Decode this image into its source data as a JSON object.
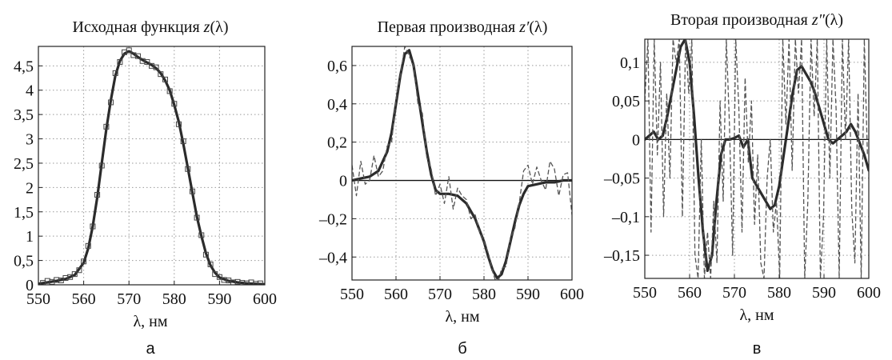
{
  "chart_data": [
    {
      "type": "line",
      "panel_label": "а",
      "title_text": "Исходная функция ",
      "title_var": "z",
      "title_tail": "(λ)",
      "xlabel": "λ, нм",
      "xlim": [
        550,
        600
      ],
      "ylim": [
        0,
        4.9
      ],
      "x_ticks": [
        550,
        560,
        570,
        580,
        590,
        600
      ],
      "x_tick_labels": [
        "550",
        "560",
        "570",
        "580",
        "590",
        "600"
      ],
      "y_ticks": [
        0,
        0.5,
        1,
        1.5,
        2,
        2.5,
        3,
        3.5,
        4,
        4.5
      ],
      "y_tick_labels": [
        "0",
        "0,5",
        "1",
        "1,5",
        "2",
        "2,5",
        "3",
        "3,5",
        "4",
        "4,5"
      ],
      "grid": true,
      "series": [
        {
          "style": "smooth",
          "x": [
            550,
            552,
            554,
            556,
            558,
            560,
            561,
            562,
            563,
            564,
            565,
            566,
            567,
            568,
            569,
            570,
            571,
            572,
            573,
            574,
            575,
            576,
            577,
            578,
            579,
            580,
            581,
            582,
            583,
            584,
            585,
            586,
            587,
            588,
            589,
            590,
            592,
            594,
            596,
            598,
            600
          ],
          "y": [
            0.02,
            0.05,
            0.08,
            0.12,
            0.2,
            0.45,
            0.75,
            1.2,
            1.8,
            2.5,
            3.2,
            3.8,
            4.3,
            4.6,
            4.75,
            4.8,
            4.75,
            4.68,
            4.62,
            4.57,
            4.52,
            4.45,
            4.35,
            4.2,
            4.0,
            3.7,
            3.35,
            2.9,
            2.4,
            1.9,
            1.4,
            1.0,
            0.65,
            0.4,
            0.25,
            0.15,
            0.08,
            0.05,
            0.03,
            0.02,
            0.01
          ]
        },
        {
          "style": "markers",
          "x": [
            551,
            552,
            553,
            554,
            555,
            556,
            557,
            558,
            559,
            560,
            561,
            562,
            563,
            564,
            565,
            566,
            567,
            568,
            569,
            570,
            571,
            572,
            573,
            574,
            575,
            576,
            577,
            578,
            579,
            580,
            581,
            582,
            583,
            584,
            585,
            586,
            587,
            588,
            589,
            590,
            591,
            592,
            593,
            594,
            595,
            596,
            597,
            598,
            599
          ],
          "y": [
            0.04,
            0.08,
            0.06,
            0.1,
            0.09,
            0.14,
            0.16,
            0.22,
            0.3,
            0.48,
            0.8,
            1.2,
            1.85,
            2.45,
            3.25,
            3.75,
            4.35,
            4.58,
            4.78,
            4.82,
            4.72,
            4.7,
            4.6,
            4.58,
            4.5,
            4.47,
            4.33,
            4.22,
            3.98,
            3.72,
            3.3,
            2.95,
            2.38,
            1.92,
            1.38,
            1.02,
            0.62,
            0.42,
            0.22,
            0.16,
            0.1,
            0.09,
            0.05,
            0.06,
            0.04,
            0.03,
            0.05,
            0.02,
            0.03
          ]
        }
      ]
    },
    {
      "type": "line",
      "panel_label": "б",
      "title_text": "Первая производная ",
      "title_var": "z′",
      "title_tail": "(λ)",
      "xlabel": "λ, нм",
      "xlim": [
        550,
        600
      ],
      "ylim": [
        -0.52,
        0.7
      ],
      "x_ticks": [
        550,
        560,
        570,
        580,
        590,
        600
      ],
      "x_tick_labels": [
        "550",
        "560",
        "570",
        "580",
        "590",
        "600"
      ],
      "y_ticks": [
        -0.4,
        -0.2,
        0,
        0.2,
        0.4,
        0.6
      ],
      "y_tick_labels": [
        "–0,4",
        "–0,2",
        "0",
        "0,2",
        "0,4",
        "0,6"
      ],
      "grid": true,
      "zero_line": true,
      "series": [
        {
          "style": "smooth",
          "x": [
            550,
            552,
            554,
            556,
            558,
            559,
            560,
            561,
            562,
            563,
            564,
            565,
            566,
            567,
            568,
            569,
            570,
            572,
            574,
            576,
            578,
            579,
            580,
            581,
            582,
            583,
            584,
            585,
            586,
            587,
            588,
            589,
            590,
            592,
            594,
            596,
            598,
            600
          ],
          "y": [
            0.0,
            0.01,
            0.02,
            0.05,
            0.15,
            0.25,
            0.4,
            0.55,
            0.66,
            0.68,
            0.6,
            0.45,
            0.3,
            0.15,
            0.03,
            -0.05,
            -0.07,
            -0.07,
            -0.08,
            -0.12,
            -0.2,
            -0.26,
            -0.32,
            -0.4,
            -0.47,
            -0.51,
            -0.49,
            -0.42,
            -0.32,
            -0.22,
            -0.13,
            -0.07,
            -0.03,
            -0.02,
            -0.01,
            -0.01,
            0.0,
            0.0
          ]
        },
        {
          "style": "noisy",
          "x": [
            550,
            551,
            552,
            553,
            554,
            555,
            556,
            557,
            558,
            559,
            560,
            561,
            562,
            563,
            564,
            565,
            566,
            567,
            568,
            569,
            570,
            571,
            572,
            573,
            574,
            575,
            576,
            577,
            578,
            579,
            580,
            581,
            582,
            583,
            584,
            585,
            586,
            587,
            588,
            589,
            590,
            591,
            592,
            593,
            594,
            595,
            596,
            597,
            598,
            599,
            600
          ],
          "y": [
            0.08,
            -0.08,
            0.1,
            -0.02,
            0.0,
            0.13,
            0.02,
            0.05,
            0.18,
            0.2,
            0.42,
            0.55,
            0.7,
            0.65,
            0.6,
            0.4,
            0.35,
            0.12,
            0.06,
            -0.08,
            -0.02,
            -0.12,
            0.02,
            -0.15,
            -0.04,
            -0.08,
            -0.1,
            -0.2,
            -0.18,
            -0.27,
            -0.32,
            -0.38,
            -0.48,
            -0.55,
            -0.46,
            -0.45,
            -0.3,
            -0.25,
            -0.12,
            0.05,
            0.08,
            -0.02,
            0.07,
            0.0,
            -0.05,
            0.1,
            0.06,
            -0.08,
            0.03,
            0.04,
            -0.18
          ]
        }
      ]
    },
    {
      "type": "line",
      "panel_label": "в",
      "title_text": "Вторая производная ",
      "title_var": "z″",
      "title_tail": "(λ)",
      "xlabel": "λ, нм",
      "xlim": [
        550,
        600
      ],
      "ylim": [
        -0.18,
        0.13
      ],
      "x_ticks": [
        550,
        560,
        570,
        580,
        590,
        600
      ],
      "x_tick_labels": [
        "550",
        "560",
        "570",
        "580",
        "590",
        "600"
      ],
      "y_ticks": [
        -0.15,
        -0.1,
        -0.05,
        0,
        0.05,
        0.1
      ],
      "y_tick_labels": [
        "–0,15",
        "–0,1",
        "–0,05",
        "0",
        "0,05",
        "0,1"
      ],
      "grid": true,
      "zero_line": true,
      "series": [
        {
          "style": "smooth",
          "x": [
            550,
            551,
            552,
            553,
            554,
            555,
            556,
            557,
            558,
            559,
            560,
            561,
            562,
            563,
            564,
            565,
            566,
            567,
            568,
            569,
            570,
            571,
            572,
            573,
            574,
            575,
            576,
            577,
            578,
            579,
            580,
            581,
            582,
            583,
            584,
            585,
            586,
            587,
            588,
            589,
            590,
            591,
            592,
            593,
            594,
            595,
            596,
            597,
            598,
            599,
            600
          ],
          "y": [
            0.0,
            0.005,
            0.01,
            0.0,
            0.005,
            0.03,
            0.06,
            0.09,
            0.12,
            0.13,
            0.1,
            0.03,
            -0.05,
            -0.12,
            -0.17,
            -0.15,
            -0.08,
            -0.02,
            0.0,
            0.0,
            0.002,
            0.005,
            -0.01,
            0.0,
            -0.05,
            -0.06,
            -0.07,
            -0.08,
            -0.09,
            -0.085,
            -0.06,
            -0.02,
            0.02,
            0.06,
            0.09,
            0.095,
            0.085,
            0.075,
            0.06,
            0.04,
            0.02,
            0.0,
            -0.005,
            0.0,
            0.005,
            0.01,
            0.02,
            0.01,
            -0.005,
            -0.02,
            -0.04
          ]
        },
        {
          "style": "noisy",
          "x": [
            550,
            550.7,
            551.4,
            552.1,
            552.8,
            553.5,
            554.2,
            554.9,
            555.6,
            556.3,
            557.0,
            557.7,
            558.4,
            559.1,
            559.8,
            560.5,
            561.2,
            561.9,
            562.6,
            563.3,
            564.0,
            564.7,
            565.4,
            566.1,
            566.8,
            567.5,
            568.2,
            568.9,
            569.6,
            570.3,
            571.0,
            571.7,
            572.4,
            573.1,
            573.8,
            574.5,
            575.2,
            575.9,
            576.6,
            577.3,
            578.0,
            578.7,
            579.4,
            580.1,
            580.8,
            581.5,
            582.2,
            582.9,
            583.6,
            584.3,
            585.0,
            585.7,
            586.4,
            587.1,
            587.8,
            588.5,
            589.2,
            589.9,
            590.6,
            591.3,
            592.0,
            592.7,
            593.4,
            594.1,
            594.8,
            595.5,
            596.2,
            596.9,
            597.6,
            598.3,
            599.0,
            599.7
          ],
          "y": [
            0.05,
            0.13,
            -0.12,
            0.13,
            -0.02,
            0.1,
            -0.1,
            0.06,
            -0.05,
            0.13,
            0.1,
            0.13,
            -0.1,
            0.13,
            0.06,
            0.13,
            -0.15,
            -0.18,
            0.0,
            -0.18,
            -0.12,
            -0.18,
            -0.08,
            -0.16,
            0.05,
            -0.08,
            0.13,
            0.02,
            -0.15,
            0.13,
            0.04,
            -0.12,
            0.08,
            -0.03,
            0.05,
            -0.11,
            -0.02,
            -0.16,
            -0.18,
            -0.05,
            0.0,
            -0.12,
            -0.08,
            -0.18,
            0.13,
            0.02,
            0.13,
            -0.04,
            0.13,
            0.06,
            0.13,
            -0.18,
            -0.08,
            0.13,
            0.03,
            0.13,
            -0.18,
            -0.1,
            0.13,
            -0.05,
            0.13,
            0.04,
            -0.18,
            0.13,
            0.0,
            0.13,
            -0.09,
            -0.16,
            0.06,
            -0.18,
            0.13,
            -0.02
          ]
        }
      ]
    }
  ]
}
